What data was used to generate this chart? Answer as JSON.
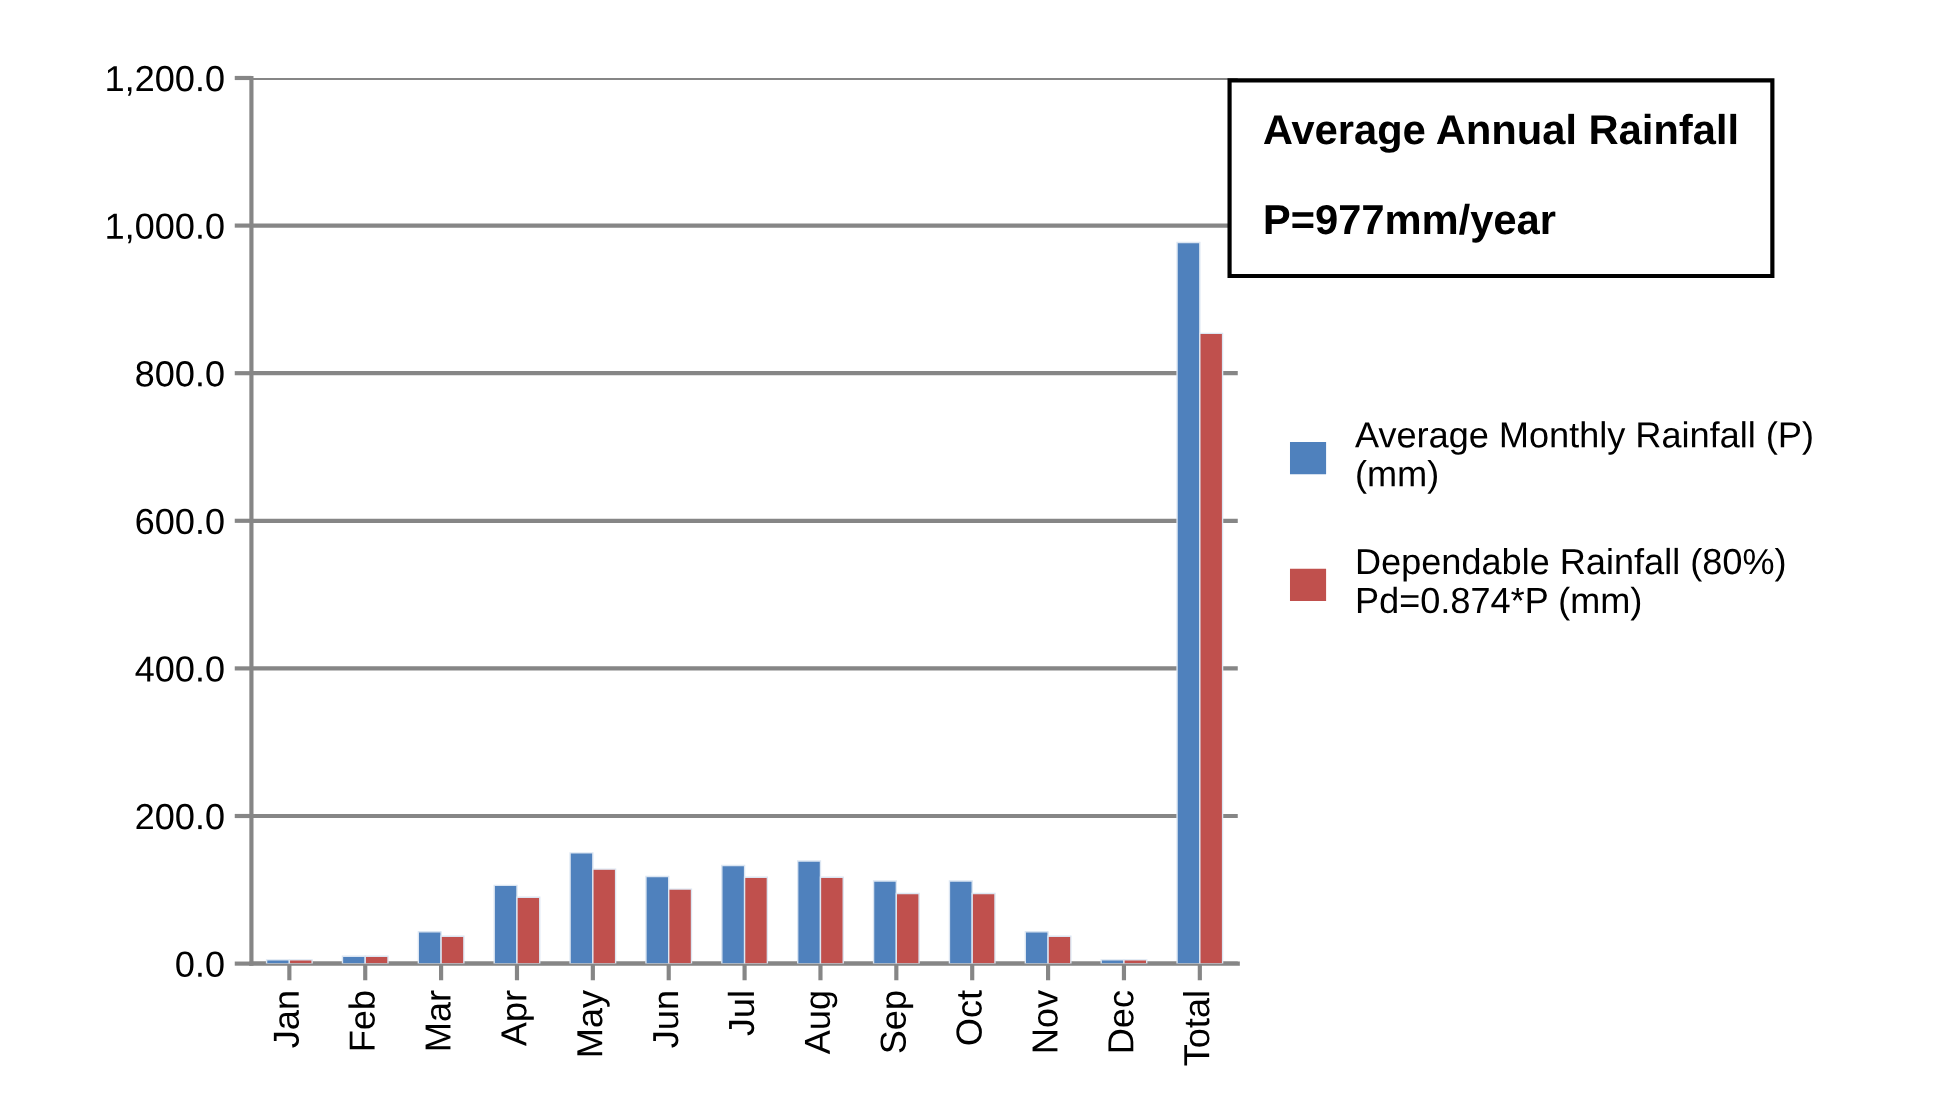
{
  "chart_data": {
    "type": "bar",
    "categories": [
      "Jan",
      "Feb",
      "Mar",
      "Apr",
      "May",
      "Jun",
      "Jul",
      "Aug",
      "Sep",
      "Oct",
      "Nov",
      "Dec",
      "Total"
    ],
    "series": [
      {
        "name": "Average Monthly Rainfall (P) (mm)",
        "color": "#4f81bd",
        "values": [
          5,
          10,
          43,
          106,
          150,
          118,
          133,
          139,
          112,
          112,
          43,
          5,
          977
        ]
      },
      {
        "name": "Dependable Rainfall (80%) Pd=0.874*P (mm)",
        "color": "#c0504d",
        "values": [
          5,
          10,
          37,
          90,
          128,
          101,
          117,
          117,
          95,
          95,
          37,
          5,
          854
        ]
      }
    ],
    "ylim": [
      0,
      1200
    ],
    "yticks": [
      {
        "value": 0,
        "label": "0.0"
      },
      {
        "value": 200,
        "label": "200.0"
      },
      {
        "value": 400,
        "label": "400.0"
      },
      {
        "value": 600,
        "label": "600.0"
      },
      {
        "value": 800,
        "label": "800.0"
      },
      {
        "value": 1000,
        "label": "1,000.0"
      },
      {
        "value": 1200,
        "label": "1,200.0"
      }
    ],
    "grid": "y",
    "legend": "right",
    "annotations": [
      "Average Annual Rainfall",
      "P=977mm/year"
    ]
  }
}
